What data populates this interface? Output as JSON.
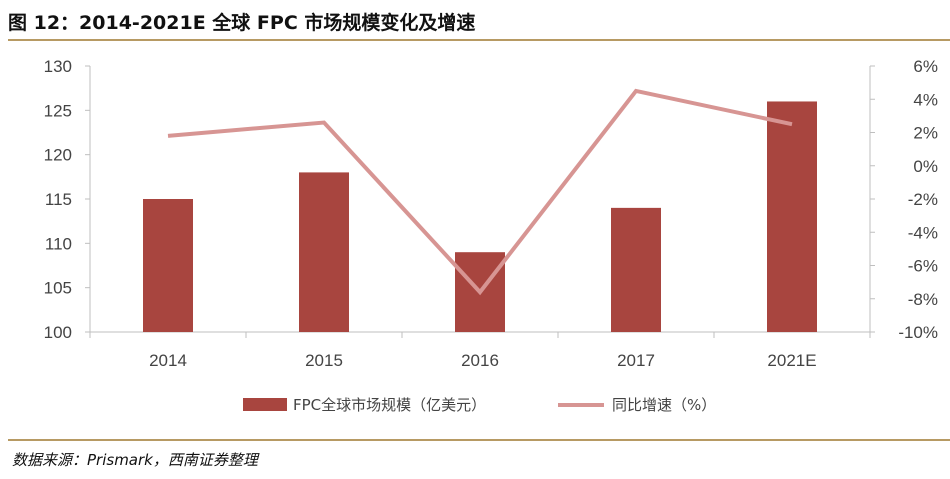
{
  "header": {
    "title": "图 12：2014-2021E 全球 FPC 市场规模变化及增速"
  },
  "footer": {
    "source": "数据来源：Prismark，西南证券整理"
  },
  "colors": {
    "bar": "#a8453f",
    "line": "#d79593",
    "axis": "#bfbfbf",
    "rule": "#b79a63"
  },
  "chart_data": {
    "type": "bar",
    "categories": [
      "2014",
      "2015",
      "2016",
      "2017",
      "2021E"
    ],
    "series": [
      {
        "name": "FPC全球市场规模（亿美元）",
        "type": "bar",
        "axis": "left",
        "values": [
          115,
          118,
          109,
          114,
          126
        ]
      },
      {
        "name": "同比增速（%）",
        "type": "line",
        "axis": "right",
        "values": [
          1.8,
          2.6,
          -7.6,
          4.5,
          2.5
        ]
      }
    ],
    "ylim": [
      100,
      130
    ],
    "y_ticks": [
      "100",
      "105",
      "110",
      "115",
      "120",
      "125",
      "130"
    ],
    "y2lim": [
      -10,
      6
    ],
    "y2_ticks": [
      "-10%",
      "-8%",
      "-6%",
      "-4%",
      "-2%",
      "0%",
      "2%",
      "4%",
      "6%"
    ],
    "legend_position": "bottom",
    "grid": false
  }
}
